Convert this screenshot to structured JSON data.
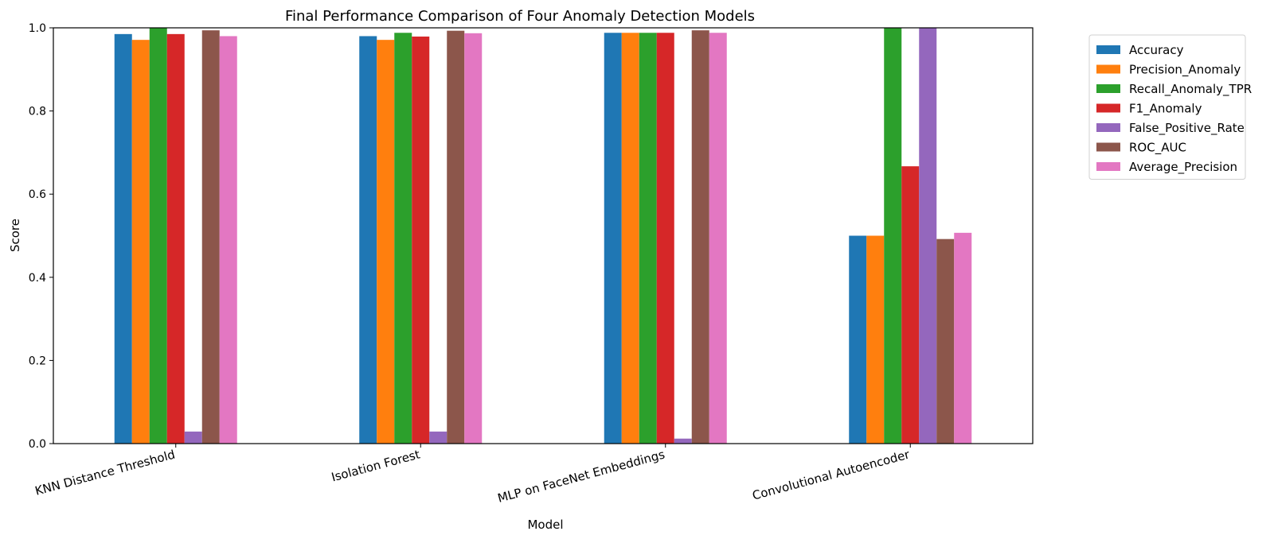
{
  "chart_data": {
    "type": "bar",
    "title": "Final Performance Comparison of Four Anomaly Detection Models",
    "xlabel": "Model",
    "ylabel": "Score",
    "ylim": [
      0,
      1.0
    ],
    "yticks": [
      "0.0",
      "0.2",
      "0.4",
      "0.6",
      "0.8",
      "1.0"
    ],
    "categories": [
      "KNN Distance Threshold",
      "Isolation Forest",
      "MLP on FaceNet Embeddings",
      "Convolutional Autoencoder"
    ],
    "grid": false,
    "legend_position": "outside-top-right",
    "series": [
      {
        "name": "Accuracy",
        "color": "#1f77b4",
        "values": [
          0.985,
          0.98,
          0.988,
          0.5
        ]
      },
      {
        "name": "Precision_Anomaly",
        "color": "#ff7f0e",
        "values": [
          0.971,
          0.971,
          0.988,
          0.5
        ]
      },
      {
        "name": "Recall_Anomaly_TPR",
        "color": "#2ca02c",
        "values": [
          1.0,
          0.988,
          0.988,
          1.0
        ]
      },
      {
        "name": "F1_Anomaly",
        "color": "#d62728",
        "values": [
          0.985,
          0.979,
          0.988,
          0.667
        ]
      },
      {
        "name": "False_Positive_Rate",
        "color": "#9467bd",
        "values": [
          0.029,
          0.029,
          0.012,
          1.0
        ]
      },
      {
        "name": "ROC_AUC",
        "color": "#8c564b",
        "values": [
          0.994,
          0.993,
          0.994,
          0.492
        ]
      },
      {
        "name": "Average_Precision",
        "color": "#e377c2",
        "values": [
          0.98,
          0.987,
          0.988,
          0.507
        ]
      }
    ]
  }
}
